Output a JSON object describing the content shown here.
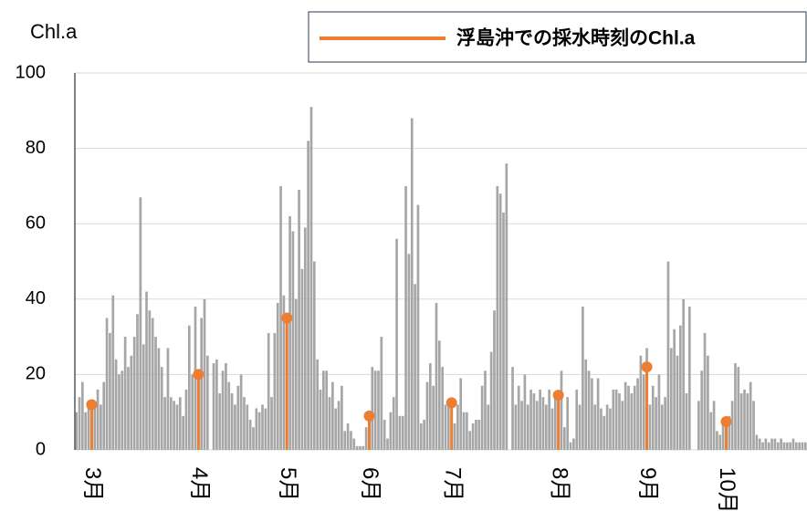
{
  "chart_data": {
    "type": "bar",
    "y_label": "Chl.a",
    "categories": [
      null,
      null,
      null,
      null,
      null,
      "3月",
      null,
      null,
      null,
      null,
      null,
      null,
      null,
      null,
      null,
      null,
      null,
      null,
      null,
      null,
      null,
      null,
      null,
      null,
      null,
      null,
      null,
      null,
      null,
      null,
      null,
      null,
      null,
      null,
      null,
      null,
      null,
      null,
      null,
      null,
      "4月",
      null,
      null,
      null,
      null,
      null,
      null,
      null,
      null,
      null,
      null,
      null,
      null,
      null,
      null,
      null,
      null,
      null,
      null,
      null,
      null,
      null,
      null,
      null,
      null,
      null,
      null,
      null,
      null,
      "5月",
      null,
      null,
      null,
      null,
      null,
      null,
      null,
      null,
      null,
      null,
      null,
      null,
      null,
      null,
      null,
      null,
      null,
      null,
      null,
      null,
      null,
      null,
      null,
      null,
      null,
      null,
      "6月",
      null,
      null,
      null,
      null,
      null,
      null,
      null,
      null,
      null,
      null,
      null,
      null,
      null,
      null,
      null,
      null,
      null,
      null,
      null,
      null,
      null,
      null,
      null,
      null,
      null,
      null,
      "7月",
      null,
      null,
      null,
      null,
      null,
      null,
      null,
      null,
      null,
      null,
      null,
      null,
      null,
      null,
      null,
      null,
      null,
      null,
      null,
      null,
      null,
      null,
      null,
      null,
      null,
      null,
      null,
      null,
      null,
      null,
      null,
      null,
      null,
      null,
      "8月",
      null,
      null,
      null,
      null,
      null,
      null,
      null,
      null,
      null,
      null,
      null,
      null,
      null,
      null,
      null,
      null,
      null,
      null,
      null,
      null,
      null,
      null,
      null,
      null,
      null,
      null,
      null,
      null,
      "9月",
      null,
      null,
      null,
      null,
      null,
      null,
      null,
      null,
      null,
      null,
      null,
      null,
      null,
      null,
      null,
      null,
      null,
      null,
      null,
      null,
      null,
      null,
      null,
      null,
      null,
      "10月",
      null,
      null,
      null,
      null,
      null,
      null,
      null,
      null,
      null,
      null,
      null,
      null,
      null,
      null,
      null,
      null,
      null,
      null,
      null,
      null,
      null,
      null,
      null,
      null,
      null,
      null
    ],
    "series": [
      {
        "name": null,
        "color": "#a6a6a6",
        "values": [
          10,
          14,
          18,
          10,
          13,
          12,
          11,
          16,
          12,
          18,
          35,
          31,
          41,
          24,
          20,
          21,
          30,
          22,
          25,
          30,
          36,
          67,
          28,
          42,
          37,
          35,
          30,
          27,
          22,
          14,
          27,
          14,
          13,
          12,
          14,
          9,
          16,
          33,
          20,
          38,
          20,
          35,
          40,
          25,
          0,
          23,
          24,
          15,
          21,
          23,
          18,
          15,
          12,
          17,
          20,
          14,
          12,
          8,
          6,
          11,
          10,
          12,
          11,
          31,
          14,
          31,
          39,
          70,
          41,
          35,
          62,
          58,
          40,
          69,
          48,
          59,
          82,
          91,
          50,
          24,
          16,
          21,
          21,
          14,
          18,
          11,
          13,
          17,
          5,
          7,
          5,
          3,
          1,
          1,
          1,
          6,
          9,
          22,
          21,
          21,
          30,
          8,
          3,
          10,
          14,
          56,
          9,
          9,
          70,
          52,
          88,
          44,
          65,
          7,
          8,
          18,
          23,
          17,
          39,
          29,
          22,
          12,
          13,
          9,
          7,
          12,
          19,
          10,
          10,
          5,
          7,
          8,
          8,
          17,
          21,
          12,
          26,
          37,
          70,
          68,
          63,
          76,
          0,
          22,
          12,
          17,
          13,
          20,
          12,
          16,
          15,
          13,
          16,
          14,
          12,
          16,
          11,
          14,
          15,
          21,
          6,
          14,
          2,
          3,
          16,
          12,
          38,
          24,
          21,
          19,
          12,
          19,
          11,
          9,
          12,
          11,
          16,
          16,
          15,
          13,
          18,
          17,
          15,
          17,
          19,
          25,
          20,
          27,
          12,
          17,
          14,
          20,
          12,
          14,
          50,
          27,
          32,
          25,
          33,
          40,
          15,
          38,
          0,
          0,
          13,
          21,
          31,
          25,
          10,
          13,
          5,
          4,
          7,
          4,
          9,
          13,
          23,
          22,
          15,
          16,
          15,
          18,
          13,
          4,
          3,
          2,
          3,
          2,
          3,
          3,
          2,
          3,
          2,
          2,
          2,
          3,
          2,
          2,
          2,
          2
        ]
      },
      {
        "name": "浮島沖での採水時刻のChl.a",
        "color": "#ed7d31",
        "type": "lollipop",
        "values": [
          null,
          null,
          null,
          null,
          null,
          12,
          null,
          null,
          null,
          null,
          null,
          null,
          null,
          null,
          null,
          null,
          null,
          null,
          null,
          null,
          null,
          null,
          null,
          null,
          null,
          null,
          null,
          null,
          null,
          null,
          null,
          null,
          null,
          null,
          null,
          null,
          null,
          null,
          null,
          null,
          20,
          null,
          null,
          null,
          null,
          null,
          null,
          null,
          null,
          null,
          null,
          null,
          null,
          null,
          null,
          null,
          null,
          null,
          null,
          null,
          null,
          null,
          null,
          null,
          null,
          null,
          null,
          null,
          null,
          35,
          null,
          null,
          null,
          null,
          null,
          null,
          null,
          null,
          null,
          null,
          null,
          null,
          null,
          null,
          null,
          null,
          null,
          null,
          null,
          null,
          null,
          null,
          null,
          null,
          null,
          null,
          9,
          null,
          null,
          null,
          null,
          null,
          null,
          null,
          null,
          null,
          null,
          null,
          null,
          null,
          null,
          null,
          null,
          null,
          null,
          null,
          null,
          null,
          null,
          null,
          null,
          null,
          null,
          12.5,
          null,
          null,
          null,
          null,
          null,
          null,
          null,
          null,
          null,
          null,
          null,
          null,
          null,
          null,
          null,
          null,
          null,
          null,
          null,
          null,
          null,
          null,
          null,
          null,
          null,
          null,
          null,
          null,
          null,
          null,
          null,
          null,
          null,
          null,
          14.5,
          null,
          null,
          null,
          null,
          null,
          null,
          null,
          null,
          null,
          null,
          null,
          null,
          null,
          null,
          null,
          null,
          null,
          null,
          null,
          null,
          null,
          null,
          null,
          null,
          null,
          null,
          null,
          null,
          22,
          null,
          null,
          null,
          null,
          null,
          null,
          null,
          null,
          null,
          null,
          null,
          null,
          null,
          null,
          null,
          null,
          null,
          null,
          null,
          null,
          null,
          null,
          null,
          null,
          null,
          7.5,
          null,
          null,
          null,
          null,
          null,
          null,
          null,
          null,
          null,
          null,
          null,
          null,
          null,
          null,
          null,
          null,
          null,
          null,
          null,
          null,
          null,
          null,
          null,
          null,
          null,
          null
        ]
      }
    ],
    "ylim": [
      0,
      100
    ],
    "yticks": [
      0,
      20,
      40,
      60,
      80,
      100
    ],
    "grid": true,
    "legend": "top-right"
  }
}
